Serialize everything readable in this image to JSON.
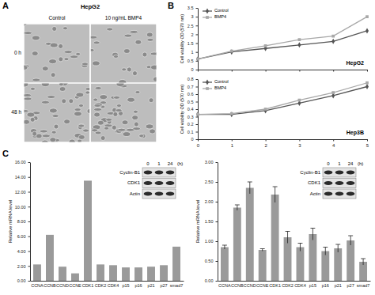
{
  "chart_data": [
    {
      "type": "image_grid",
      "panel": "A",
      "title": "HepG2",
      "columns": [
        "Control",
        "10 ng/mL BMP4"
      ],
      "rows": [
        "0 h",
        "48 h"
      ]
    },
    {
      "type": "line",
      "panel": "B",
      "title": "HepG2",
      "y_label": "Cell viability OD (570 nm)",
      "x": [
        0,
        1,
        2,
        3,
        4,
        5
      ],
      "xlim": [
        0,
        5
      ],
      "xticks": [
        0,
        1,
        2,
        3,
        4,
        5
      ],
      "ylim": [
        0,
        3.5
      ],
      "yticks": [
        0,
        0.5,
        1,
        1.5,
        2,
        2.5,
        3,
        3.5
      ],
      "tick_labels": "y",
      "legend": "top-left",
      "series": [
        {
          "name": "Control",
          "color": "#555555",
          "marker": "diamond",
          "values": [
            0.6,
            1.0,
            1.2,
            1.4,
            1.6,
            2.2
          ]
        },
        {
          "name": "BMP4",
          "color": "#a8a8a8",
          "marker": "square",
          "values": [
            0.6,
            1.05,
            1.35,
            1.7,
            1.9,
            3.0
          ]
        }
      ]
    },
    {
      "type": "line",
      "title": "Hep3B",
      "y_label": "Cell viability OD (570 nm)",
      "x": [
        0,
        1,
        2,
        3,
        4,
        5
      ],
      "xlim": [
        0,
        5
      ],
      "xticks": [
        0,
        1,
        2,
        3,
        4,
        5
      ],
      "ylim": [
        0,
        0.8
      ],
      "yticks": [
        0,
        0.1,
        0.2,
        0.3,
        0.4,
        0.5,
        0.6,
        0.7,
        0.8
      ],
      "legend": "top-left",
      "series": [
        {
          "name": "Control",
          "color": "#555555",
          "marker": "diamond",
          "values": [
            0.33,
            0.33,
            0.38,
            0.48,
            0.58,
            0.7
          ]
        },
        {
          "name": "BMP4",
          "color": "#a8a8a8",
          "marker": "square",
          "values": [
            0.33,
            0.34,
            0.4,
            0.52,
            0.62,
            0.75
          ]
        }
      ]
    },
    {
      "type": "bar",
      "panel": "C",
      "y_label": "Relative mRNA level",
      "color": "#9a9a9a",
      "categories": [
        "CCNA",
        "CCNB",
        "CCND",
        "CCNE",
        "CDK1",
        "CDK2",
        "CDK4",
        "p15",
        "p16",
        "p21",
        "p27",
        "smad7"
      ],
      "values": [
        2.2,
        6.2,
        1.9,
        1.0,
        13.5,
        2.2,
        2.1,
        1.8,
        1.8,
        1.9,
        2.1,
        4.6
      ],
      "ylim": [
        0,
        16
      ],
      "yticks": [
        {
          "value": 0,
          "label": "0.00"
        },
        {
          "value": 2,
          "label": "2.00"
        },
        {
          "value": 4,
          "label": "4.00"
        },
        {
          "value": 6,
          "label": "6.00"
        },
        {
          "value": 8,
          "label": "8.00"
        },
        {
          "value": 10,
          "label": "10.00"
        },
        {
          "value": 12,
          "label": "12.00"
        },
        {
          "value": 14,
          "label": "14.00"
        },
        {
          "value": 16,
          "label": "16.00"
        }
      ],
      "blot": {
        "lanes": [
          0,
          1,
          24
        ],
        "unit": "(h)",
        "bands": [
          "Cyclin-B1",
          "CDK1",
          "Actin"
        ]
      }
    },
    {
      "type": "bar",
      "y_label": "Relative mRNA level",
      "color": "#9a9a9a",
      "categories": [
        "CCNA",
        "CCNB",
        "CCND",
        "CCNE",
        "CDK1",
        "CDK2",
        "CDK4",
        "p15",
        "p16",
        "p21",
        "p27",
        "smad7"
      ],
      "values": [
        0.85,
        1.85,
        2.35,
        0.78,
        2.18,
        1.1,
        0.85,
        1.18,
        0.75,
        0.82,
        1.02,
        0.48
      ],
      "errors": [
        0.05,
        0.07,
        0.15,
        0.03,
        0.2,
        0.15,
        0.1,
        0.15,
        0.1,
        0.1,
        0.12,
        0.08
      ],
      "ylim": [
        0,
        3
      ],
      "yticks": [
        {
          "value": 0,
          "label": "0.00"
        },
        {
          "value": 0.5,
          "label": "0.50"
        },
        {
          "value": 1,
          "label": "1.00"
        },
        {
          "value": 1.5,
          "label": "1.50"
        },
        {
          "value": 2,
          "label": "2.00"
        },
        {
          "value": 2.5,
          "label": "2.50"
        },
        {
          "value": 3,
          "label": "3.00"
        }
      ],
      "blot": {
        "lanes": [
          0,
          1,
          24
        ],
        "unit": "(h)",
        "bands": [
          "Cyclin-B1",
          "CDK1",
          "Actin"
        ]
      }
    }
  ]
}
